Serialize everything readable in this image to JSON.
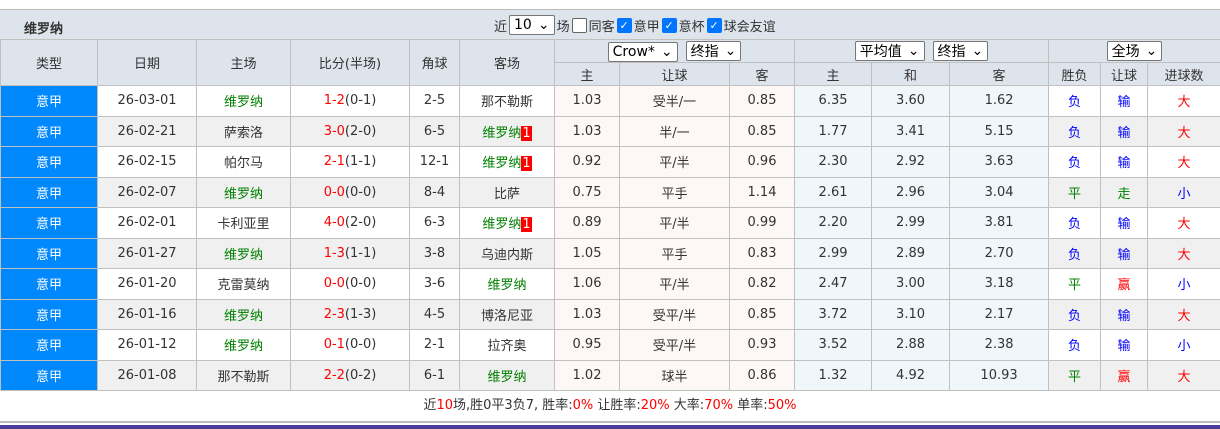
{
  "title": "维罗纳",
  "filter": {
    "prefix": "近",
    "count": "10",
    "suffix": "场",
    "same": "同客",
    "leagues": [
      "意甲",
      "意杯",
      "球会友谊"
    ]
  },
  "selects": {
    "company": "Crow*",
    "odds_type": "终指",
    "avg": "平均值",
    "avg_type": "终指",
    "scope": "全场"
  },
  "headers": [
    "类型",
    "日期",
    "主场",
    "比分(半场)",
    "角球",
    "客场"
  ],
  "subheaders": [
    "主",
    "让球",
    "客",
    "主",
    "和",
    "客",
    "胜负",
    "让球",
    "进球数"
  ],
  "colors": {
    "type_bg": "#0088ff",
    "team": "#008000",
    "loss": "#0000ff",
    "win": "#ff0000",
    "draw": "#008000"
  },
  "rows": [
    {
      "type": "意甲",
      "date": "26-03-01",
      "home": "维罗纳",
      "score": "1-2",
      "half": "(0-1)",
      "corner": "2-5",
      "away": "那不勒斯",
      "badge": "",
      "o": [
        "1.03",
        "受半/一",
        "0.85",
        "6.35",
        "3.60",
        "1.62"
      ],
      "r": [
        "负",
        "输",
        "大"
      ]
    },
    {
      "type": "意甲",
      "date": "26-02-21",
      "home": "萨索洛",
      "score": "3-0",
      "half": "(2-0)",
      "corner": "6-5",
      "away": "维罗纳",
      "badge": "1",
      "o": [
        "1.03",
        "半/一",
        "0.85",
        "1.77",
        "3.41",
        "5.15"
      ],
      "r": [
        "负",
        "输",
        "大"
      ]
    },
    {
      "type": "意甲",
      "date": "26-02-15",
      "home": "帕尔马",
      "score": "2-1",
      "half": "(1-1)",
      "corner": "12-1",
      "away": "维罗纳",
      "badge": "1",
      "o": [
        "0.92",
        "平/半",
        "0.96",
        "2.30",
        "2.92",
        "3.63"
      ],
      "r": [
        "负",
        "输",
        "大"
      ]
    },
    {
      "type": "意甲",
      "date": "26-02-07",
      "home": "维罗纳",
      "score": "0-0",
      "half": "(0-0)",
      "corner": "8-4",
      "away": "比萨",
      "badge": "",
      "o": [
        "0.75",
        "平手",
        "1.14",
        "2.61",
        "2.96",
        "3.04"
      ],
      "r": [
        "平",
        "走",
        "小"
      ]
    },
    {
      "type": "意甲",
      "date": "26-02-01",
      "home": "卡利亚里",
      "score": "4-0",
      "half": "(2-0)",
      "corner": "6-3",
      "away": "维罗纳",
      "badge": "1",
      "o": [
        "0.89",
        "平/半",
        "0.99",
        "2.20",
        "2.99",
        "3.81"
      ],
      "r": [
        "负",
        "输",
        "大"
      ]
    },
    {
      "type": "意甲",
      "date": "26-01-27",
      "home": "维罗纳",
      "score": "1-3",
      "half": "(1-1)",
      "corner": "3-8",
      "away": "乌迪内斯",
      "badge": "",
      "o": [
        "1.05",
        "平手",
        "0.83",
        "2.99",
        "2.89",
        "2.70"
      ],
      "r": [
        "负",
        "输",
        "大"
      ]
    },
    {
      "type": "意甲",
      "date": "26-01-20",
      "home": "克雷莫纳",
      "score": "0-0",
      "half": "(0-0)",
      "corner": "3-6",
      "away": "维罗纳",
      "badge": "",
      "o": [
        "1.06",
        "平/半",
        "0.82",
        "2.47",
        "3.00",
        "3.18"
      ],
      "r": [
        "平",
        "赢",
        "小"
      ]
    },
    {
      "type": "意甲",
      "date": "26-01-16",
      "home": "维罗纳",
      "score": "2-3",
      "half": "(1-3)",
      "corner": "4-5",
      "away": "博洛尼亚",
      "badge": "",
      "o": [
        "1.03",
        "受平/半",
        "0.85",
        "3.72",
        "3.10",
        "2.17"
      ],
      "r": [
        "负",
        "输",
        "大"
      ]
    },
    {
      "type": "意甲",
      "date": "26-01-12",
      "home": "维罗纳",
      "score": "0-1",
      "half": "(0-0)",
      "corner": "2-1",
      "away": "拉齐奥",
      "badge": "",
      "o": [
        "0.95",
        "受平/半",
        "0.93",
        "3.52",
        "2.88",
        "2.38"
      ],
      "r": [
        "负",
        "输",
        "小"
      ]
    },
    {
      "type": "意甲",
      "date": "26-01-08",
      "home": "那不勒斯",
      "score": "2-2",
      "half": "(0-2)",
      "corner": "6-1",
      "away": "维罗纳",
      "badge": "",
      "o": [
        "1.02",
        "球半",
        "0.86",
        "1.32",
        "4.92",
        "10.93"
      ],
      "r": [
        "平",
        "赢",
        "大"
      ]
    }
  ],
  "summary": [
    [
      "近",
      ""
    ],
    [
      "10",
      "r"
    ],
    [
      "场,胜0平3负7, 胜率:",
      ""
    ],
    [
      "0%",
      "r"
    ],
    [
      " 让胜率:",
      ""
    ],
    [
      "20%",
      "r"
    ],
    [
      " 大率:",
      ""
    ],
    [
      "70%",
      "r"
    ],
    [
      " 单率:",
      ""
    ],
    [
      "50%",
      "r"
    ]
  ]
}
